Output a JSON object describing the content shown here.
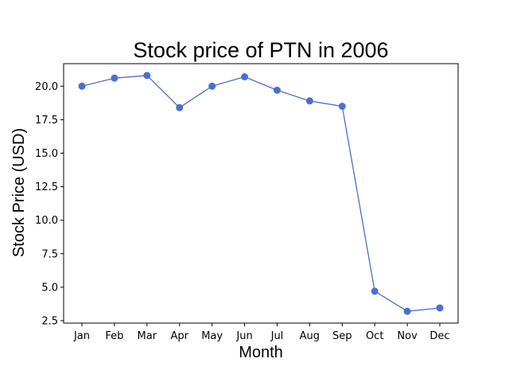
{
  "chart_data": {
    "type": "line",
    "title": "Stock price of PTN in 2006",
    "xlabel": "Month",
    "ylabel": "Stock Price (USD)",
    "categories": [
      "Jan",
      "Feb",
      "Mar",
      "Apr",
      "May",
      "Jun",
      "Jul",
      "Aug",
      "Sep",
      "Oct",
      "Nov",
      "Dec"
    ],
    "series": [
      {
        "values": [
          20.0,
          20.6,
          20.8,
          18.4,
          20.0,
          20.7,
          19.7,
          18.9,
          18.5,
          4.7,
          3.2,
          3.45
        ]
      }
    ],
    "yticks": [
      2.5,
      5.0,
      7.5,
      10.0,
      12.5,
      15.0,
      17.5,
      20.0
    ],
    "ytick_labels": [
      "2.5",
      "5.0",
      "7.5",
      "10.0",
      "12.5",
      "15.0",
      "17.5",
      "20.0"
    ],
    "ylim": [
      2.32,
      21.68
    ],
    "grid": false,
    "legend": false,
    "line_color": "#4c6fcf",
    "marker": "circle"
  }
}
